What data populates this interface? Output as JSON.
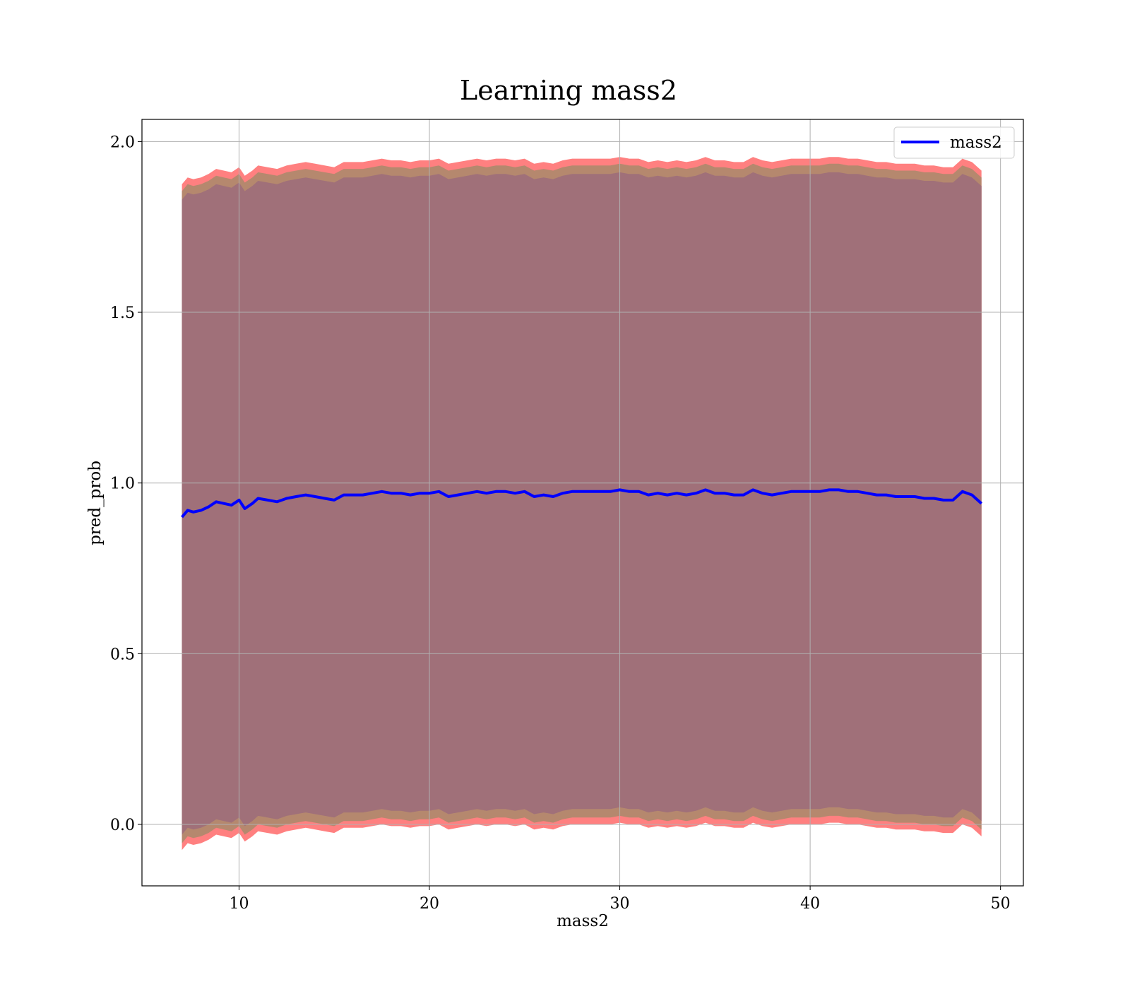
{
  "chart_data": {
    "type": "area",
    "title": "Learning mass2",
    "xlabel": "mass2",
    "ylabel": "pred_prob",
    "xlim": [
      4.9,
      51.2
    ],
    "ylim": [
      -0.18,
      2.065
    ],
    "xticks": [
      10,
      20,
      30,
      40,
      50
    ],
    "yticks": [
      0.0,
      0.5,
      1.0,
      1.5,
      2.0
    ],
    "xtick_labels": [
      "10",
      "20",
      "30",
      "40",
      "50"
    ],
    "ytick_labels": [
      "0.0",
      "0.5",
      "1.0",
      "1.5",
      "2.0"
    ],
    "grid": true,
    "legend": {
      "position": "upper-right",
      "entries": [
        "mass2"
      ]
    },
    "colors": {
      "line": "#0000ff",
      "outer_band": "#ff8080",
      "middle_band": "#b5886e",
      "inner_band": "#a07079"
    },
    "series": [
      {
        "name": "mass2",
        "x": [
          7.0,
          7.3,
          7.6,
          8.0,
          8.4,
          8.8,
          9.2,
          9.6,
          10.0,
          10.3,
          10.7,
          11.0,
          11.5,
          12.0,
          12.5,
          13.0,
          13.5,
          14.0,
          14.5,
          15.0,
          15.5,
          16.0,
          16.5,
          17.0,
          17.5,
          18.0,
          18.5,
          19.0,
          19.5,
          20.0,
          20.5,
          21.0,
          21.5,
          22.0,
          22.5,
          23.0,
          23.5,
          24.0,
          24.5,
          25.0,
          25.5,
          26.0,
          26.5,
          27.0,
          27.5,
          28.0,
          28.5,
          29.0,
          29.5,
          30.0,
          30.5,
          31.0,
          31.5,
          32.0,
          32.5,
          33.0,
          33.5,
          34.0,
          34.5,
          35.0,
          35.5,
          36.0,
          36.5,
          37.0,
          37.5,
          38.0,
          38.5,
          39.0,
          39.5,
          40.0,
          40.5,
          41.0,
          41.5,
          42.0,
          42.5,
          43.0,
          43.5,
          44.0,
          44.5,
          45.0,
          45.5,
          46.0,
          46.5,
          47.0,
          47.5,
          48.0,
          48.5,
          49.0
        ],
        "y": [
          0.9,
          0.92,
          0.915,
          0.92,
          0.93,
          0.945,
          0.94,
          0.935,
          0.95,
          0.925,
          0.94,
          0.955,
          0.95,
          0.945,
          0.955,
          0.96,
          0.965,
          0.96,
          0.955,
          0.95,
          0.965,
          0.965,
          0.965,
          0.97,
          0.975,
          0.97,
          0.97,
          0.965,
          0.97,
          0.97,
          0.975,
          0.96,
          0.965,
          0.97,
          0.975,
          0.97,
          0.975,
          0.975,
          0.97,
          0.975,
          0.96,
          0.965,
          0.96,
          0.97,
          0.975,
          0.975,
          0.975,
          0.975,
          0.975,
          0.98,
          0.975,
          0.975,
          0.965,
          0.97,
          0.965,
          0.97,
          0.965,
          0.97,
          0.98,
          0.97,
          0.97,
          0.965,
          0.965,
          0.98,
          0.97,
          0.965,
          0.97,
          0.975,
          0.975,
          0.975,
          0.975,
          0.98,
          0.98,
          0.975,
          0.975,
          0.97,
          0.965,
          0.965,
          0.96,
          0.96,
          0.96,
          0.955,
          0.955,
          0.95,
          0.95,
          0.975,
          0.965,
          0.94
        ],
        "band_inner": 0.93,
        "band_middle": 0.955,
        "band_outer": 0.975
      }
    ]
  }
}
